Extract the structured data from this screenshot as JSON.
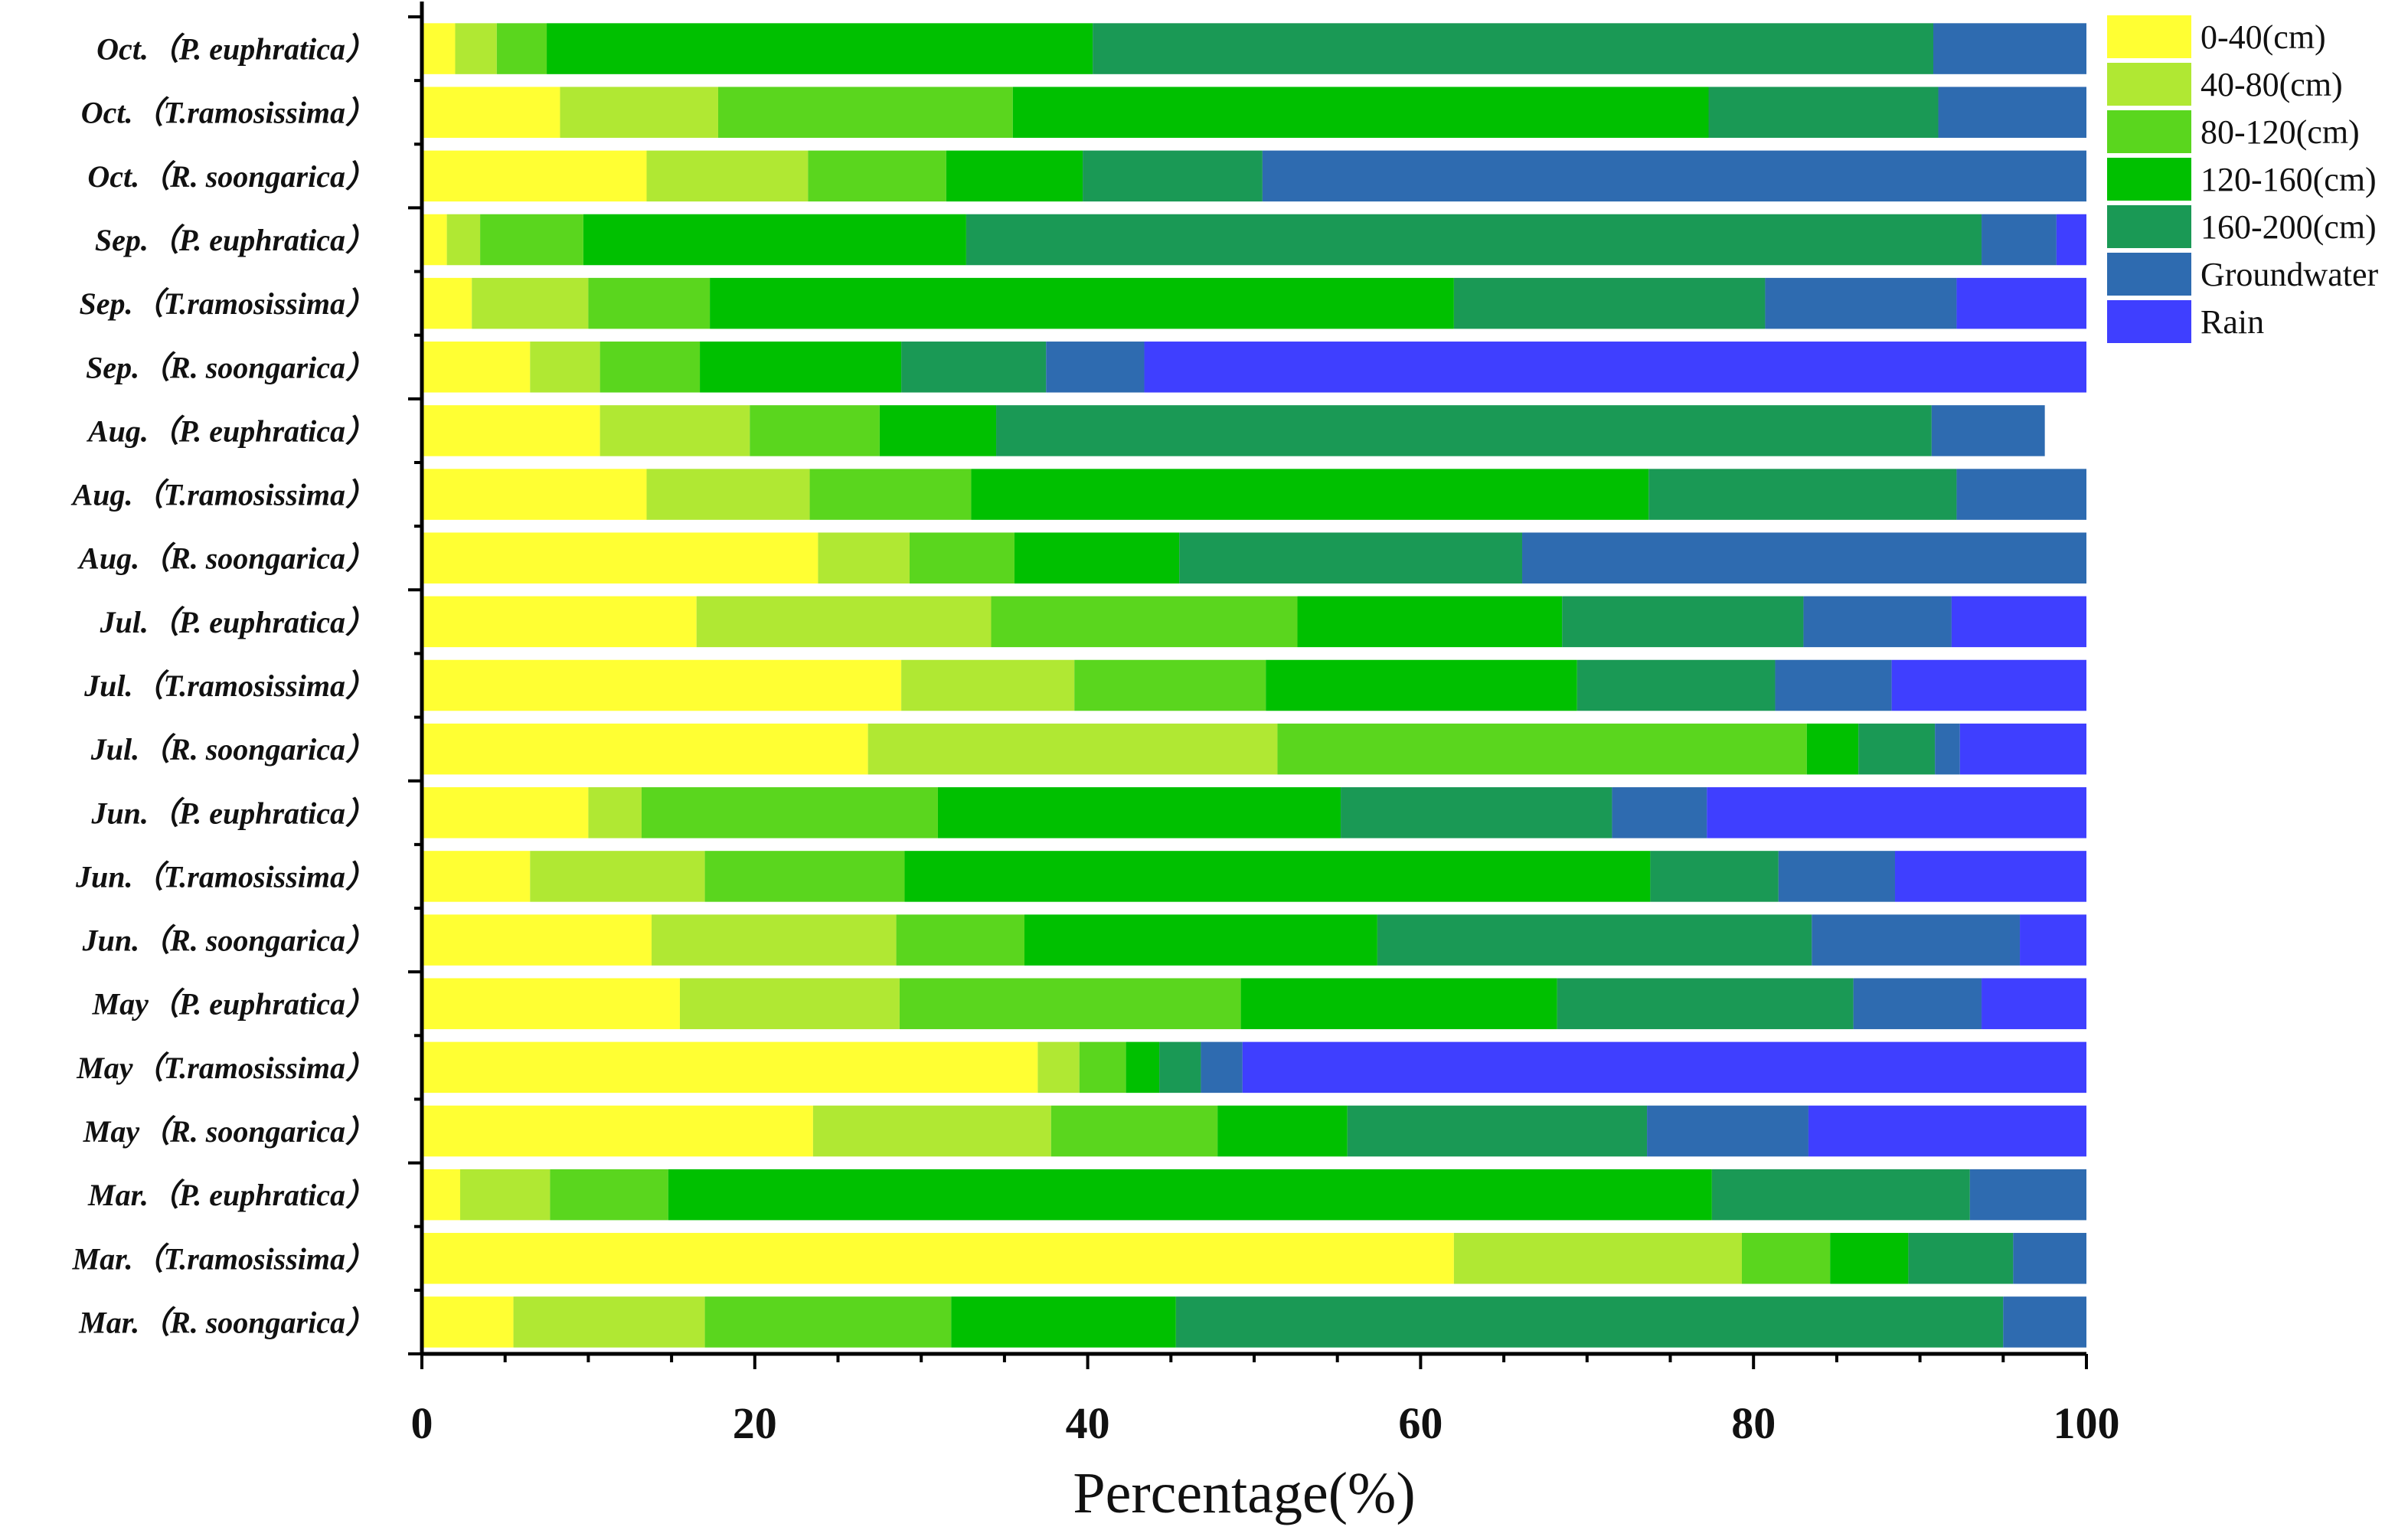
{
  "chart_data": {
    "type": "bar",
    "orientation": "horizontal",
    "stacked": true,
    "title": "",
    "xlabel": "Percentage(%)",
    "ylabel": "",
    "xlim": [
      0,
      100
    ],
    "xticks": [
      "0",
      "20",
      "40",
      "60",
      "80",
      "100"
    ],
    "categories": [
      "Oct.（P. euphratica）",
      "Oct.（T.ramosissima）",
      "Oct.（R. soongarica）",
      "Sep.（P. euphratica）",
      "Sep.（T.ramosissima）",
      "Sep.（R. soongarica）",
      "Aug.（P. euphratica）",
      "Aug.（T.ramosissima）",
      "Aug.（R. soongarica）",
      "Jul.（P. euphratica）",
      "Jul.（T.ramosissima）",
      "Jul.（R. soongarica）",
      "Jun.（P. euphratica）",
      "Jun.（T.ramosissima）",
      "Jun.（R. soongarica）",
      "May（P. euphratica）",
      "May（T.ramosissima）",
      "May（R. soongarica）",
      "Mar.（P. euphratica）",
      "Mar.（T.ramosissima）",
      "Mar.（R. soongarica）"
    ],
    "series": [
      {
        "name": "0-40(cm)",
        "color": "#ffff33",
        "values": [
          2,
          8.3,
          13.5,
          1.5,
          3,
          6.5,
          10.7,
          13.5,
          23.8,
          16.5,
          28.8,
          26.8,
          10,
          6.5,
          13.8,
          15.5,
          37,
          23.5,
          2.3,
          62,
          5.5
        ]
      },
      {
        "name": "40-80(cm)",
        "color": "#b0e833",
        "values": [
          2.5,
          9.5,
          9.7,
          2,
          7,
          4.2,
          9,
          9.8,
          5.5,
          17.7,
          10.4,
          24.6,
          3.2,
          10.5,
          14.7,
          13.2,
          2.5,
          14.3,
          5.4,
          17.3,
          11.5
        ]
      },
      {
        "name": "80-120(cm)",
        "color": "#5ad61e",
        "values": [
          3,
          17.7,
          8.3,
          6.2,
          7.3,
          6,
          7.8,
          9.7,
          6.3,
          18.4,
          11.5,
          31.8,
          17.8,
          12,
          7.7,
          20.5,
          2.8,
          10,
          7.1,
          5.3,
          14.8
        ]
      },
      {
        "name": "120-160(cm)",
        "color": "#00c000",
        "values": [
          32.8,
          41.8,
          8.2,
          23,
          44.7,
          12.1,
          7,
          40.7,
          9.9,
          15.9,
          18.7,
          3.1,
          24.2,
          44.8,
          21.2,
          19,
          2,
          7.8,
          62.7,
          4.7,
          13.5
        ]
      },
      {
        "name": "160-200(cm)",
        "color": "#1a9955",
        "values": [
          50.5,
          13.8,
          10.8,
          61,
          18.7,
          8.7,
          56.2,
          18.5,
          20.6,
          14.5,
          11.9,
          4.6,
          16.3,
          7.7,
          26.1,
          17.8,
          2.5,
          18,
          15.5,
          6.3,
          49.7
        ]
      },
      {
        "name": "Groundwater",
        "color": "#2e6bb0",
        "values": [
          9.2,
          8.9,
          49.5,
          4.5,
          11.5,
          5.9,
          6.8,
          7.8,
          33.9,
          8.9,
          7,
          1.5,
          5.7,
          7,
          12.5,
          7.7,
          2.5,
          9.7,
          7,
          4.4,
          5
        ]
      },
      {
        "name": "Rain",
        "color": "#3f3fff",
        "values": [
          0,
          0,
          0,
          1.8,
          7.8,
          56.6,
          0,
          0,
          0,
          8.1,
          11.7,
          7.6,
          22.8,
          11.5,
          4,
          6.3,
          50.7,
          16.7,
          0,
          0,
          0
        ]
      }
    ],
    "legend_position": "top-right",
    "grid": false
  }
}
